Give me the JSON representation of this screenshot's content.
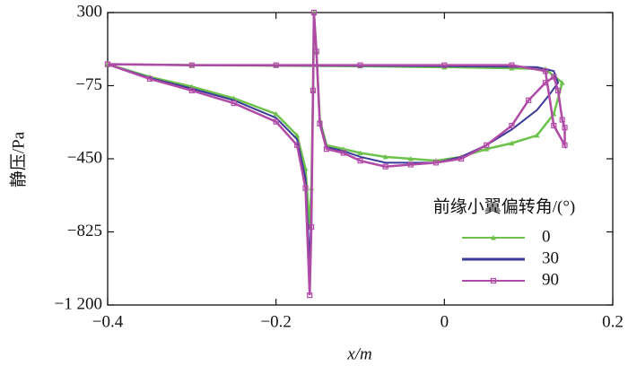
{
  "chart_data": {
    "type": "line",
    "x_label": "x/m",
    "y_label": "静压/Pa",
    "legend_title": "前缘小翼偏转角/(°)",
    "xlim": [
      -0.4,
      0.2
    ],
    "xticks": [
      {
        "value": -0.4,
        "label": "−0.4"
      },
      {
        "value": -0.2,
        "label": "−0.2"
      },
      0,
      0.2
    ],
    "ylim": [
      -1200,
      300
    ],
    "yticks": [
      300,
      {
        "value": -75,
        "label": "−75"
      },
      {
        "value": -450,
        "label": "−450"
      },
      {
        "value": -825,
        "label": "−825"
      },
      {
        "value": -1200,
        "label": "−1 200"
      }
    ],
    "series": [
      {
        "name": "0",
        "color": "#6cc24a",
        "marker": "triangle",
        "x": [
          -0.4,
          -0.35,
          -0.3,
          -0.25,
          -0.2,
          -0.175,
          -0.165,
          -0.16,
          -0.158,
          -0.156,
          -0.155,
          -0.152,
          -0.148,
          -0.14,
          -0.12,
          -0.1,
          -0.07,
          -0.04,
          -0.01,
          0.02,
          0.05,
          0.08,
          0.11,
          0.13,
          0.14,
          0.12,
          0.08,
          0.0,
          -0.1,
          -0.2,
          -0.3,
          -0.4
        ],
        "values": [
          35,
          -30,
          -80,
          -140,
          -220,
          -330,
          -500,
          -800,
          -600,
          -100,
          300,
          100,
          -250,
          -380,
          -400,
          -420,
          -440,
          -450,
          -460,
          -440,
          -400,
          -370,
          -330,
          -220,
          -60,
          10,
          15,
          20,
          25,
          28,
          30,
          35
        ]
      },
      {
        "name": "30",
        "color": "#3a3a98",
        "marker": "none",
        "x": [
          -0.4,
          -0.35,
          -0.3,
          -0.25,
          -0.2,
          -0.175,
          -0.165,
          -0.16,
          -0.158,
          -0.156,
          -0.155,
          -0.152,
          -0.148,
          -0.14,
          -0.12,
          -0.1,
          -0.07,
          -0.04,
          -0.01,
          0.02,
          0.05,
          0.08,
          0.11,
          0.125,
          0.135,
          0.13,
          0.11,
          0.08,
          0.0,
          -0.1,
          -0.2,
          -0.3,
          -0.4
        ],
        "values": [
          35,
          -35,
          -90,
          -150,
          -240,
          -350,
          -550,
          -1000,
          -700,
          -100,
          300,
          100,
          -260,
          -390,
          -410,
          -440,
          -470,
          -470,
          -470,
          -440,
          -380,
          -300,
          -200,
          -120,
          -60,
          0,
          20,
          22,
          25,
          27,
          28,
          30,
          35
        ]
      },
      {
        "name": "90",
        "color": "#b04aa6",
        "marker": "square",
        "x": [
          -0.4,
          -0.35,
          -0.3,
          -0.25,
          -0.2,
          -0.175,
          -0.165,
          -0.16,
          -0.158,
          -0.156,
          -0.155,
          -0.152,
          -0.148,
          -0.14,
          -0.12,
          -0.1,
          -0.07,
          -0.04,
          -0.01,
          0.02,
          0.05,
          0.08,
          0.1,
          0.12,
          0.13,
          0.135,
          0.14,
          0.143,
          0.143,
          0.13,
          0.12,
          0.08,
          0.0,
          -0.1,
          -0.2,
          -0.3,
          -0.4
        ],
        "values": [
          35,
          -40,
          -100,
          -165,
          -260,
          -380,
          -600,
          -1150,
          -800,
          -100,
          300,
          100,
          -270,
          -400,
          -420,
          -460,
          -490,
          -480,
          -470,
          -450,
          -380,
          -280,
          -150,
          -60,
          -30,
          -100,
          -250,
          -290,
          -380,
          -280,
          0,
          30,
          30,
          30,
          30,
          30,
          35
        ]
      }
    ],
    "legend_position": "lower right"
  }
}
